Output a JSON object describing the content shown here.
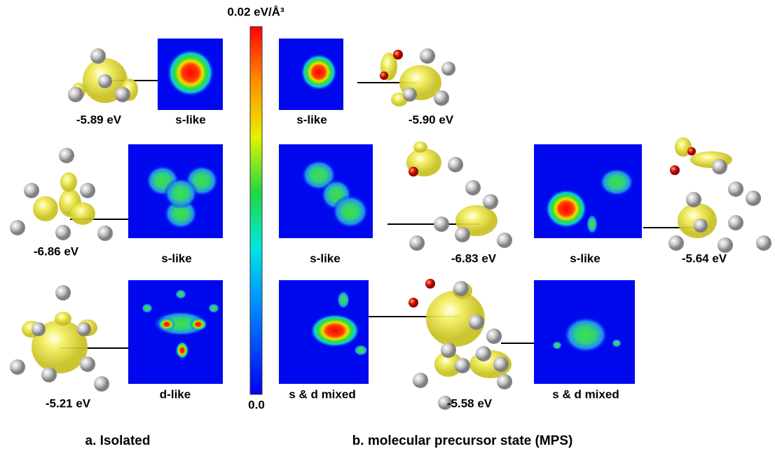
{
  "colorbar": {
    "max_label": "0.02 eV/Å³",
    "min_label": "0.0"
  },
  "isolated": {
    "caption": "a. Isolated",
    "energies": [
      "-5.89 eV",
      "-6.86 eV",
      "-5.21 eV"
    ],
    "maps": [
      "s-like",
      "s-like",
      "d-like"
    ]
  },
  "mps": {
    "caption": "b. molecular precursor state (MPS)",
    "energies": [
      "-5.90 eV",
      "-6.83 eV",
      "-5.64 eV",
      "-5.58 eV"
    ],
    "maps": [
      "s-like",
      "s-like",
      "s-like",
      "s & d mixed",
      "s & d mixed"
    ]
  }
}
